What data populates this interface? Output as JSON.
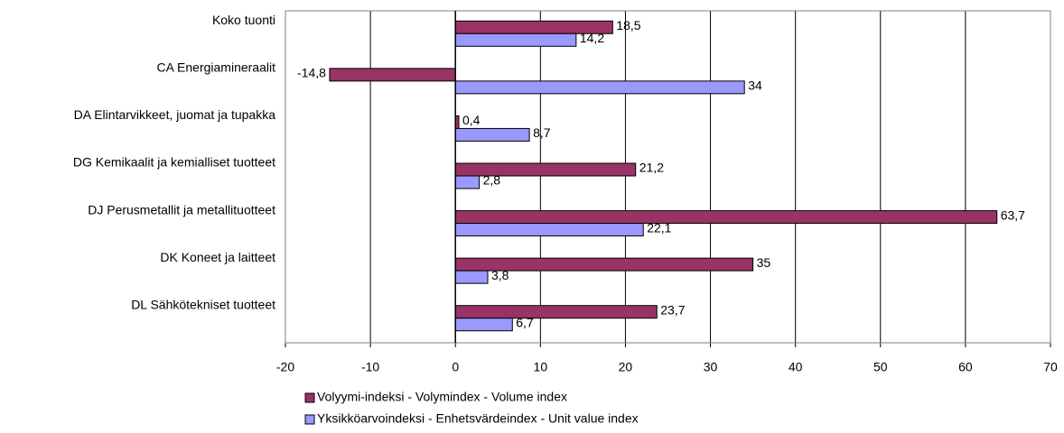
{
  "chart_data": {
    "type": "hbar",
    "categories": [
      "Koko tuonti",
      "CA Energiamineraalit",
      "DA Elintarvikkeet, juomat ja tupakka",
      "DG Kemikaalit ja kemialliset tuotteet",
      "DJ Perusmetallit ja metallituotteet",
      "DK Koneet ja laitteet",
      "DL Sähkötekniset tuotteet"
    ],
    "series": [
      {
        "name": "Volyymi-indeksi - Volymindex - Volume index",
        "color": "#993366",
        "values": [
          18.5,
          -14.8,
          0.4,
          21.2,
          63.7,
          35,
          23.7
        ],
        "value_labels": [
          "18,5",
          "-14,8",
          "0,4",
          "21,2",
          "63,7",
          "35",
          "23,7"
        ]
      },
      {
        "name": "Yksikköarvoindeksi - Enhetsvärdeindex - Unit value index",
        "color": "#9999ff",
        "values": [
          14.2,
          34,
          8.7,
          2.8,
          22.1,
          3.8,
          6.7
        ],
        "value_labels": [
          "14,2",
          "34",
          "8,7",
          "2,8",
          "22,1",
          "3,8",
          "6,7"
        ]
      }
    ],
    "xlim": [
      -20,
      70
    ],
    "xticks": [
      -20,
      -10,
      0,
      10,
      20,
      30,
      40,
      50,
      60,
      70
    ],
    "grid": true,
    "legend": "bottom"
  }
}
